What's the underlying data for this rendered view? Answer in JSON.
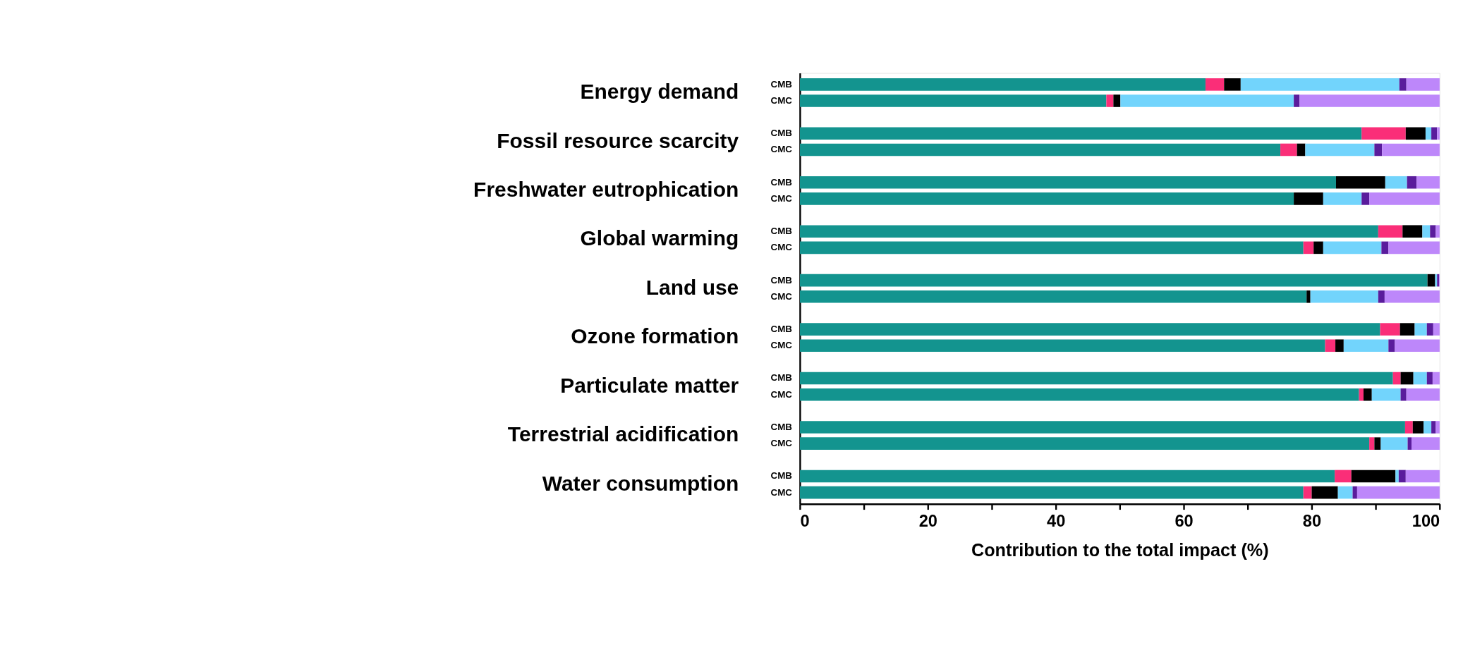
{
  "chart_data": {
    "type": "bar",
    "orientation": "horizontal",
    "stacked": true,
    "xlabel": "Contribution to the total impact (%)",
    "categories": [
      "CMB",
      "CMC",
      "CMB",
      "CMC",
      "CMB",
      "CMC",
      "CMB",
      "CMC",
      "CMB",
      "CMC",
      "CMB",
      "CMC",
      "CMB",
      "CMC",
      "CMB",
      "CMC",
      "CMB",
      "CMC"
    ],
    "annotations": [
      "Energy demand",
      "Fossil resource scarcity",
      "Freshwater eutrophication",
      "Global warming",
      "Land use",
      "Ozone formation",
      "Particulate matter",
      "Terrestrial acidification",
      "Water consumption"
    ],
    "xlim": [
      0,
      100
    ],
    "xticks": [
      0,
      {
        "value": 10,
        "label": null
      },
      20,
      {
        "value": 30,
        "label": null
      },
      40,
      {
        "value": 50,
        "label": null
      },
      60,
      {
        "value": 70,
        "label": null
      },
      80,
      {
        "value": 90,
        "label": null
      },
      100
    ],
    "series": [
      {
        "color": "#13948f",
        "values": [
          63.4,
          47.9,
          87.8,
          75.1,
          83.8,
          77.2,
          90.4,
          78.7,
          98.1,
          79.2,
          90.7,
          82.1,
          92.7,
          87.4,
          94.6,
          89.0,
          83.6,
          78.7
        ]
      },
      {
        "color": "#fa2e78",
        "values": [
          2.9,
          1.1,
          6.9,
          2.6,
          0,
          0,
          3.8,
          1.6,
          0,
          0,
          3.1,
          1.6,
          1.2,
          0.7,
          1.2,
          0.8,
          2.6,
          1.3
        ]
      },
      {
        "color": "#000000",
        "values": [
          2.6,
          1.1,
          3.1,
          1.3,
          7.7,
          4.6,
          3.1,
          1.5,
          1.2,
          0.6,
          2.3,
          1.3,
          2.0,
          1.3,
          1.7,
          1.0,
          6.9,
          4.1
        ]
      },
      {
        "color": "#72d4fc",
        "values": [
          24.8,
          27.1,
          0.9,
          10.8,
          3.4,
          6.0,
          1.2,
          9.1,
          0.3,
          10.6,
          1.9,
          7.0,
          2.1,
          4.5,
          1.2,
          4.2,
          0.5,
          2.3
        ]
      },
      {
        "color": "#5a1c9c",
        "values": [
          1.1,
          0.9,
          0.9,
          1.2,
          1.5,
          1.2,
          0.9,
          1.1,
          0.3,
          1.0,
          1.0,
          1.0,
          0.9,
          0.9,
          0.7,
          0.6,
          1.1,
          0.7
        ]
      },
      {
        "color": "#bd87fa",
        "values": [
          5.2,
          21.9,
          0.4,
          9.0,
          3.6,
          11.0,
          0.6,
          8.0,
          0.1,
          8.6,
          1.0,
          7.0,
          1.1,
          5.2,
          0.6,
          4.4,
          5.3,
          12.9
        ]
      }
    ]
  }
}
